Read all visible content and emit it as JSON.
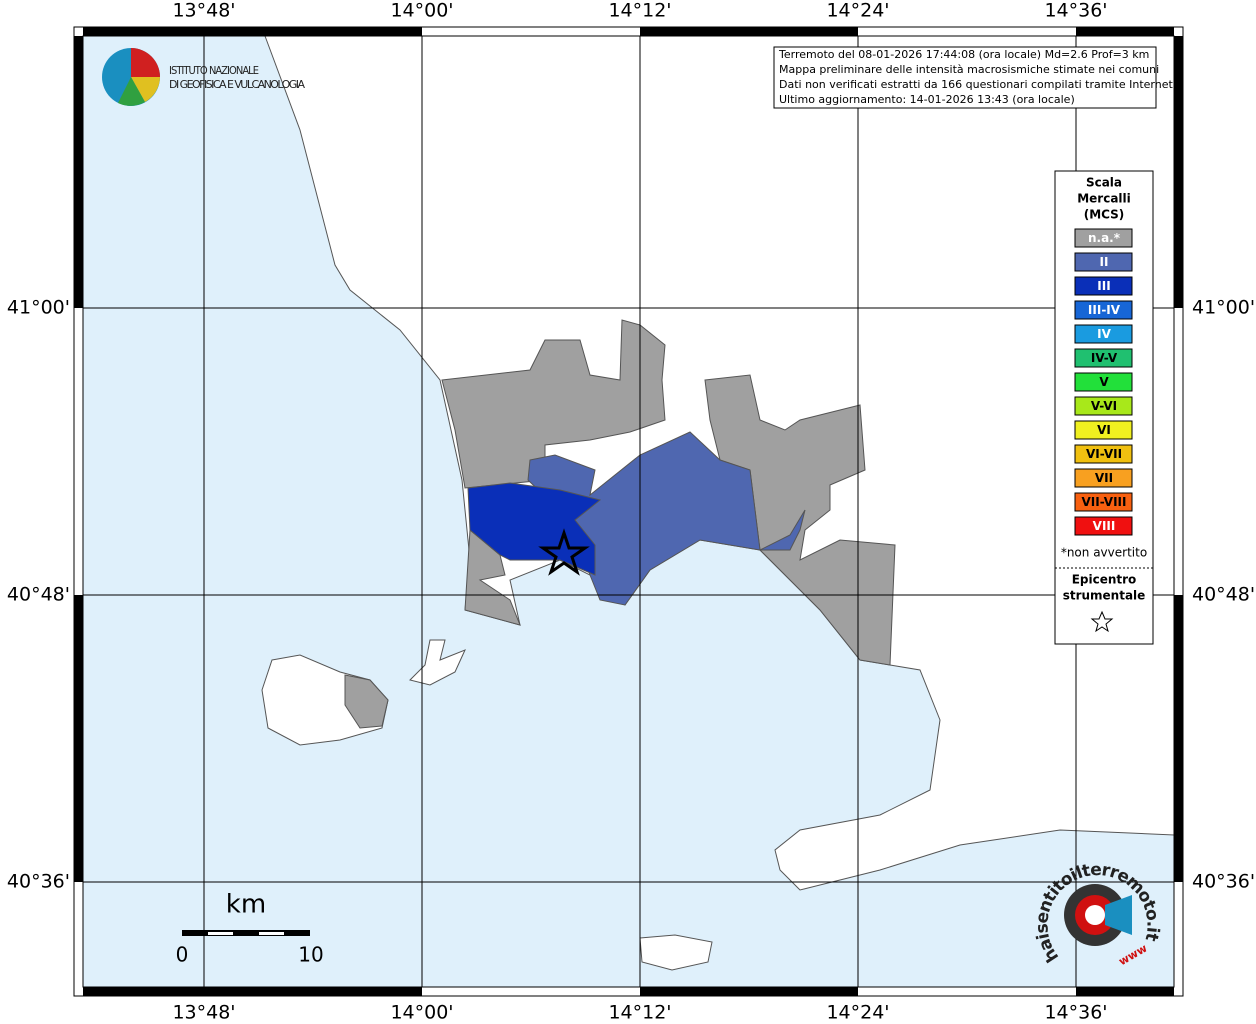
{
  "header": {
    "info_lines": [
      "Terremoto del 08-01-2026 17:44:08 (ora locale) Md=2.6 Prof=3 km",
      "Mappa preliminare delle intensità macrosismiche stimate nei comuni",
      "Dati non verificati estratti da 166 questionari compilati tramite Internet.",
      "Ultimo aggiornamento: 14-01-2026 13:43 (ora locale)"
    ]
  },
  "logo": {
    "line1": "ISTITUTO NAZIONALE",
    "line2": "DI GEOFISICA E VULCANOLOGIA"
  },
  "axes": {
    "longitudes": [
      "13°48'",
      "14°00'",
      "14°12'",
      "14°24'",
      "14°36'"
    ],
    "latitudes": [
      "41°00'",
      "40°48'",
      "40°36'"
    ]
  },
  "legend": {
    "title_lines": [
      "Scala",
      "Mercalli",
      "(MCS)"
    ],
    "items": [
      {
        "label": "n.a.*",
        "color": "#a0a0a0",
        "text_color": "#ffffff"
      },
      {
        "label": "II",
        "color": "#4f67b0",
        "text_color": "#ffffff"
      },
      {
        "label": "III",
        "color": "#0a2fb8",
        "text_color": "#ffffff"
      },
      {
        "label": "III-IV",
        "color": "#1766d6",
        "text_color": "#ffffff"
      },
      {
        "label": "IV",
        "color": "#1a9be0",
        "text_color": "#ffffff"
      },
      {
        "label": "IV-V",
        "color": "#20c070",
        "text_color": "#000000"
      },
      {
        "label": "V",
        "color": "#22e03a",
        "text_color": "#000000"
      },
      {
        "label": "V-VI",
        "color": "#a8e81a",
        "text_color": "#000000"
      },
      {
        "label": "VI",
        "color": "#f0f020",
        "text_color": "#000000"
      },
      {
        "label": "VI-VII",
        "color": "#f0c010",
        "text_color": "#000000"
      },
      {
        "label": "VII",
        "color": "#f8a020",
        "text_color": "#000000"
      },
      {
        "label": "VII-VIII",
        "color": "#f86010",
        "text_color": "#000000"
      },
      {
        "label": "VIII",
        "color": "#f01010",
        "text_color": "#ffffff"
      }
    ],
    "note": "*non avvertito",
    "epicenter_lines": [
      "Epicentro",
      "strumentale"
    ]
  },
  "scale_bar": {
    "unit": "km",
    "labels": [
      "0",
      "10"
    ]
  },
  "badge": {
    "text": "haisentitoilterremoto.it",
    "small": "www"
  }
}
